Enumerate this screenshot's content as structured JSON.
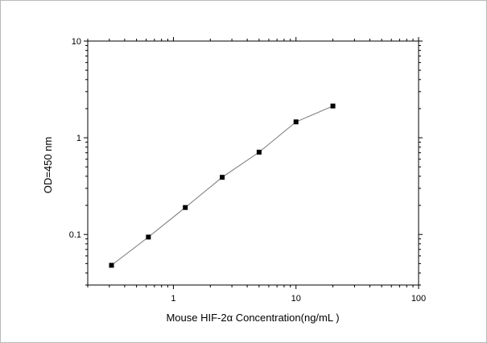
{
  "chart_data": {
    "type": "line",
    "title": "",
    "xlabel": "Mouse HIF-2α  Concentration(ng/mL )",
    "ylabel": "OD=450 nm",
    "x_scale": "log",
    "y_scale": "log",
    "xlim": [
      0.2,
      100
    ],
    "ylim": [
      0.03,
      10
    ],
    "x_ticks": [
      {
        "value": 1,
        "label": "1"
      },
      {
        "value": 10,
        "label": "10"
      },
      {
        "value": 100,
        "label": "100"
      }
    ],
    "y_ticks": [
      {
        "value": 0.1,
        "label": "0.1"
      },
      {
        "value": 1,
        "label": "1"
      },
      {
        "value": 10,
        "label": "10"
      }
    ],
    "grid": false,
    "legend": "none",
    "line_color": "#777777",
    "marker_color": "#000000",
    "series": [
      {
        "x": [
          0.3125,
          0.625,
          1.25,
          2.5,
          5,
          10,
          20
        ],
        "y": [
          0.048,
          0.094,
          0.19,
          0.39,
          0.71,
          1.46,
          2.13
        ]
      }
    ]
  }
}
